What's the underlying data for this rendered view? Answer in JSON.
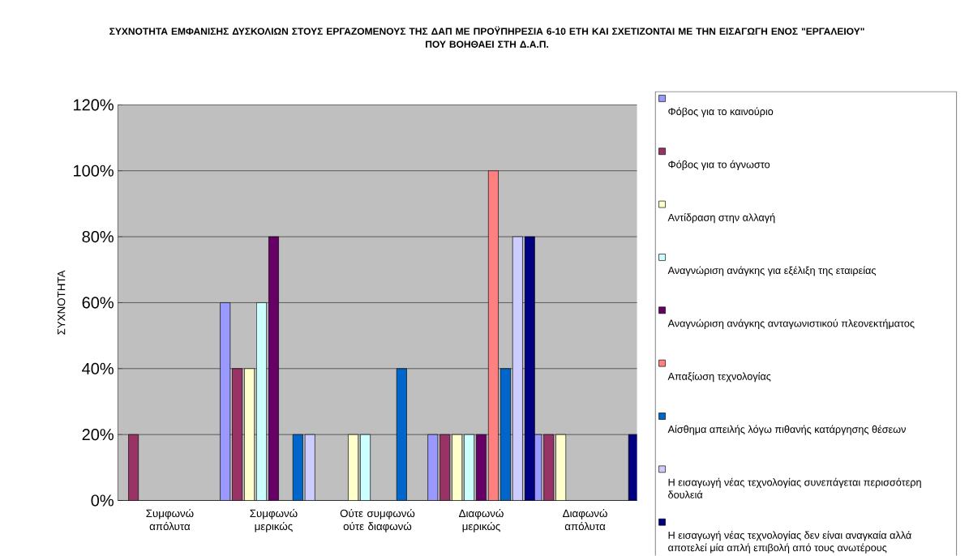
{
  "chart_data": {
    "type": "bar",
    "title": "ΣΥΧΝΟΤΗΤΑ ΕΜΦΑΝΙΣΗΣ ΔΥΣΚΟΛΙΩΝ ΣΤΟΥΣ ΕΡΓΑΖΟΜΕΝΟΥΣ ΤΗΣ ΔΑΠ ΜΕ ΠΡΟΫΠΗΡΕΣΙΑ 6-10 ΕΤΗ ΚΑΙ ΣΧΕΤΙΖΟΝΤΑΙ ΜΕ ΤΗΝ ΕΙΣΑΓΩΓΗ ΕΝΟΣ \"ΕΡΓΑΛΕΙΟΥ\" ΠΟΥ ΒΟΗΘΑΕΙ ΣΤΗ Δ.Α.Π.",
    "ylabel": "ΣΥΧΝΟΤΗΤΑ",
    "categories": [
      "Συμφωνώ απόλυτα",
      "Συμφωνώ μερικώς",
      "Ούτε συμφωνώ ούτε διαφωνώ",
      "Διαφωνώ μερικώς",
      "Διαφωνώ απόλυτα"
    ],
    "series": [
      {
        "name": "Φόβος για το καινούριο",
        "color": "#9999ff",
        "values": [
          null,
          60,
          null,
          20,
          20
        ]
      },
      {
        "name": "Φόβος για το άγνωστο",
        "color": "#993366",
        "values": [
          20,
          40,
          null,
          20,
          20
        ]
      },
      {
        "name": "Αντίδραση στην αλλαγή",
        "color": "#ffffcc",
        "values": [
          null,
          40,
          20,
          20,
          20
        ]
      },
      {
        "name": "Αναγνώριση ανάγκης για εξέλιξη της εταιρείας",
        "color": "#ccffff",
        "values": [
          null,
          60,
          20,
          20,
          null
        ]
      },
      {
        "name": "Αναγνώριση ανάγκης ανταγωνιστικού πλεονεκτήματος",
        "color": "#660066",
        "values": [
          null,
          80,
          null,
          20,
          null
        ]
      },
      {
        "name": "Απαξίωση τεχνολογίας",
        "color": "#ff8080",
        "values": [
          null,
          null,
          null,
          100,
          null
        ]
      },
      {
        "name": "Αίσθημα απειλής λόγω πιθανής κατάργησης θέσεων",
        "color": "#0066cc",
        "values": [
          null,
          20,
          40,
          40,
          null
        ]
      },
      {
        "name": "Η εισαγωγή νέας τεχνολογίας συνεπάγεται περισσότερη δουλειά",
        "color": "#ccccff",
        "values": [
          null,
          20,
          null,
          80,
          null
        ]
      },
      {
        "name": "Η εισαγωγή νέας τεχνολογίας δεν είναι αναγκαία αλλά αποτελεί μία απλή επιβολή από τους ανωτέρους",
        "color": "#000080",
        "values": [
          null,
          null,
          null,
          80,
          20
        ]
      }
    ],
    "ylim": [
      0,
      120
    ],
    "yticks": [
      {
        "value": 0,
        "label": "0%"
      },
      {
        "value": 20,
        "label": "20%"
      },
      {
        "value": 40,
        "label": "40%"
      },
      {
        "value": 60,
        "label": "60%"
      },
      {
        "value": 80,
        "label": "80%"
      },
      {
        "value": 100,
        "label": "100%"
      },
      {
        "value": 120,
        "label": "120%"
      }
    ],
    "grid": "y",
    "legend": "right"
  }
}
